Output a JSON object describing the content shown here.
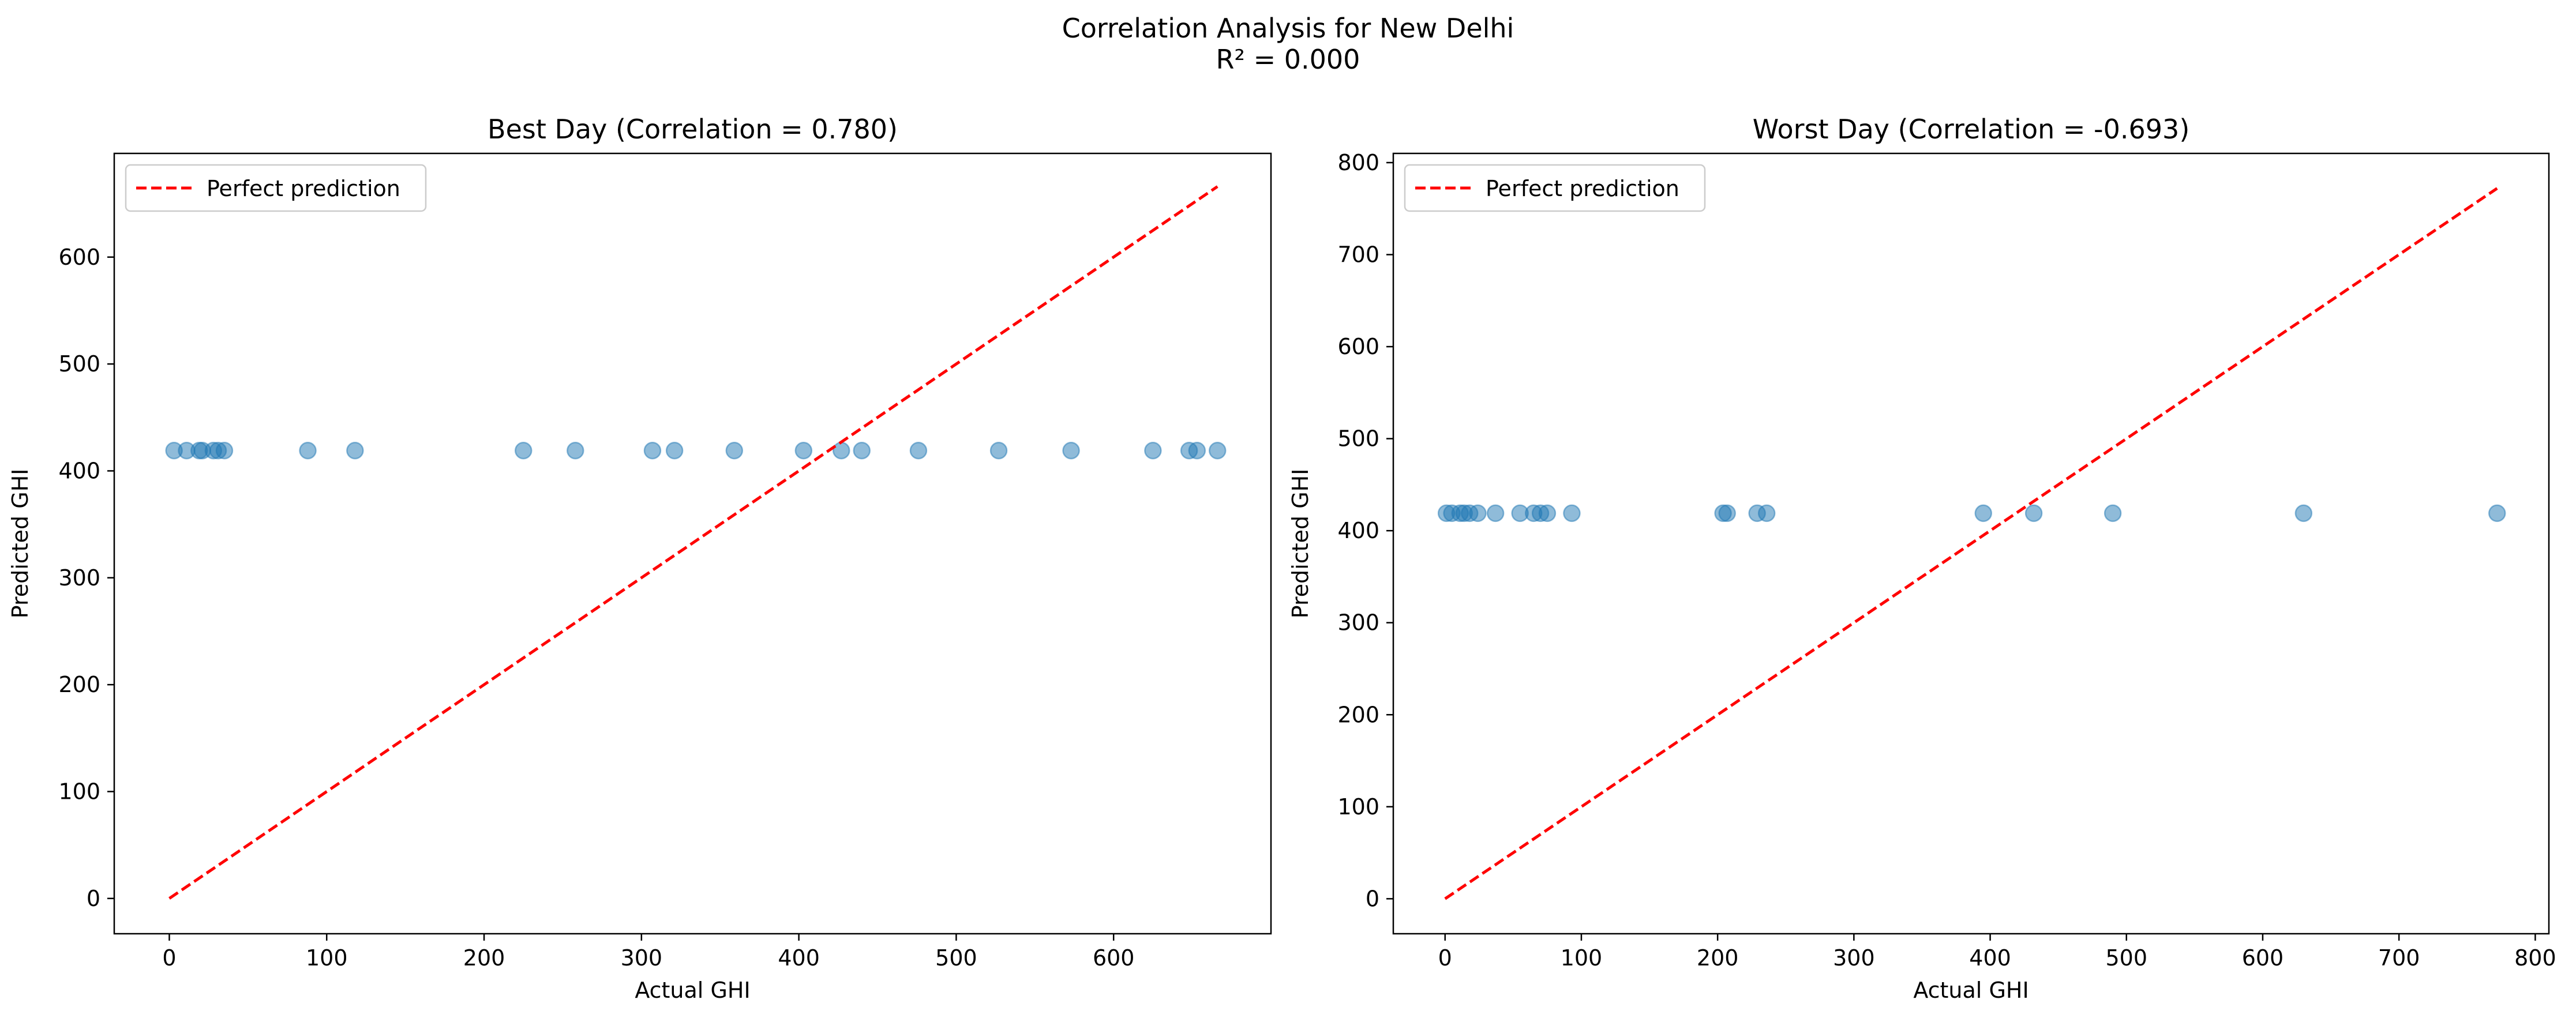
{
  "figure": {
    "suptitle_line1": "Correlation Analysis for New Delhi",
    "suptitle_line2": "R² = 0.000"
  },
  "chart_data": [
    {
      "type": "scatter",
      "title": "Best Day (Correlation = 0.780)",
      "xlabel": "Actual GHI",
      "ylabel": "Predicted GHI",
      "xlim": [
        -35,
        700
      ],
      "ylim": [
        -33,
        697
      ],
      "xticks": [
        0,
        100,
        200,
        300,
        400,
        500,
        600
      ],
      "yticks": [
        0,
        100,
        200,
        300,
        400,
        500,
        600
      ],
      "grid": false,
      "legend": {
        "position": "upper-left",
        "entries": [
          "Perfect prediction"
        ]
      },
      "line": {
        "name": "Perfect prediction",
        "x": [
          0,
          666
        ],
        "y": [
          0,
          666
        ],
        "color": "#ff0000",
        "style": "dashed"
      },
      "series": [
        {
          "color": "#1f77b4",
          "x": [
            3,
            11,
            19,
            21,
            28,
            31,
            35,
            88,
            118,
            225,
            258,
            307,
            321,
            359,
            403,
            427,
            440,
            476,
            527,
            573,
            625,
            648,
            653,
            666
          ],
          "y": [
            419,
            419,
            419,
            419,
            419,
            419,
            419,
            419,
            419,
            419,
            419,
            419,
            419,
            419,
            419,
            419,
            419,
            419,
            419,
            419,
            419,
            419,
            419,
            419
          ]
        }
      ]
    },
    {
      "type": "scatter",
      "title": "Worst Day (Correlation = -0.693)",
      "xlabel": "Actual GHI",
      "ylabel": "Predicted GHI",
      "xlim": [
        -38,
        810
      ],
      "ylim": [
        -38,
        810
      ],
      "xticks": [
        0,
        100,
        200,
        300,
        400,
        500,
        600,
        700,
        800
      ],
      "yticks": [
        0,
        100,
        200,
        300,
        400,
        500,
        600,
        700,
        800
      ],
      "grid": false,
      "legend": {
        "position": "upper-left",
        "entries": [
          "Perfect prediction"
        ]
      },
      "line": {
        "name": "Perfect prediction",
        "x": [
          0,
          772
        ],
        "y": [
          0,
          772
        ],
        "color": "#ff0000",
        "style": "dashed"
      },
      "series": [
        {
          "color": "#1f77b4",
          "x": [
            1,
            5,
            11,
            14,
            18,
            24,
            37,
            55,
            65,
            70,
            75,
            93,
            204,
            207,
            229,
            236,
            395,
            432,
            490,
            630,
            772
          ],
          "y": [
            419,
            419,
            419,
            419,
            419,
            419,
            419,
            419,
            419,
            419,
            419,
            419,
            419,
            419,
            419,
            419,
            419,
            419,
            419,
            419,
            419
          ]
        }
      ]
    }
  ]
}
